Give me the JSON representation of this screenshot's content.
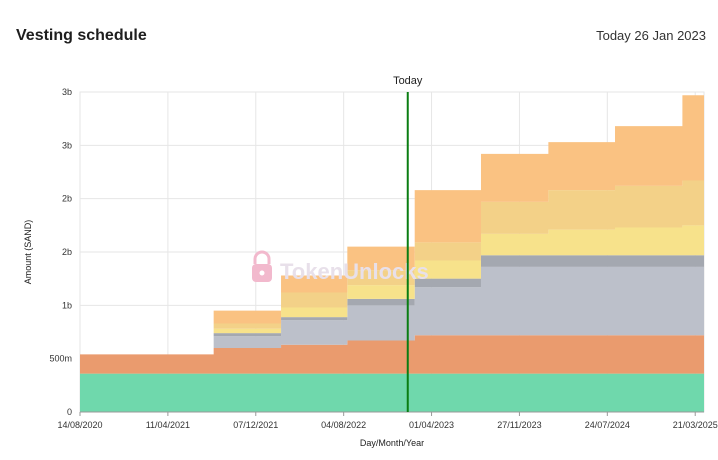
{
  "header": {
    "title": "Vesting schedule",
    "today_prefix": "Today",
    "today_date": "26 Jan 2023"
  },
  "watermark": {
    "text": "TokenUnlocks",
    "icon": "lock-icon"
  },
  "chart_data": {
    "type": "area",
    "title": "Vesting schedule",
    "xlabel": "Day/Month/Year",
    "ylabel": "Amount (SAND)",
    "x_ticks": [
      "14/08/2020",
      "11/04/2021",
      "07/12/2021",
      "04/08/2022",
      "01/04/2023",
      "27/11/2023",
      "24/07/2024",
      "21/03/2025"
    ],
    "y_ticks": [
      {
        "value": 0,
        "label": "0"
      },
      {
        "value": 500,
        "label": "500m"
      },
      {
        "value": 1000,
        "label": "1b"
      },
      {
        "value": 1500,
        "label": "2b"
      },
      {
        "value": 2000,
        "label": "2b"
      },
      {
        "value": 2500,
        "label": "3b"
      },
      {
        "value": 3000,
        "label": "3b"
      }
    ],
    "ylim": [
      0,
      3000
    ],
    "xlim": [
      "14/08/2020",
      "14/04/2025"
    ],
    "grid": true,
    "today": {
      "date": "26/01/2023",
      "label": "Today"
    },
    "x": [
      "14/08/2020",
      "20/05/2021",
      "14/08/2021",
      "14/11/2021",
      "14/02/2022",
      "14/05/2022",
      "14/08/2022",
      "14/11/2022",
      "14/02/2023",
      "14/05/2023",
      "14/08/2023",
      "14/11/2023",
      "14/02/2024",
      "14/05/2024",
      "14/08/2024",
      "14/11/2024",
      "14/02/2025"
    ],
    "series": [
      {
        "color": "#6fd8ac",
        "values": [
          360,
          360,
          360,
          360,
          360,
          360,
          360,
          360,
          360,
          360,
          360,
          360,
          360,
          360,
          360,
          360,
          360
        ]
      },
      {
        "color": "#ea9b6e",
        "values": [
          180,
          180,
          240,
          240,
          270,
          270,
          310,
          310,
          360,
          360,
          360,
          360,
          360,
          360,
          360,
          360,
          360
        ]
      },
      {
        "color": "#bcc0ca",
        "values": [
          0,
          0,
          110,
          110,
          230,
          230,
          330,
          330,
          450,
          450,
          640,
          640,
          640,
          640,
          640,
          640,
          640
        ]
      },
      {
        "color": "#a4a8b0",
        "values": [
          0,
          0,
          30,
          30,
          30,
          30,
          60,
          60,
          80,
          80,
          110,
          110,
          110,
          110,
          110,
          110,
          110
        ]
      },
      {
        "color": "#f7e28b",
        "values": [
          0,
          0,
          40,
          40,
          90,
          90,
          130,
          130,
          170,
          170,
          200,
          200,
          240,
          240,
          260,
          260,
          280
        ]
      },
      {
        "color": "#f3d188",
        "values": [
          0,
          0,
          50,
          50,
          140,
          140,
          140,
          140,
          170,
          170,
          300,
          300,
          370,
          370,
          390,
          390,
          420
        ]
      },
      {
        "color": "#fac282",
        "values": [
          0,
          0,
          120,
          120,
          160,
          160,
          220,
          220,
          490,
          490,
          450,
          450,
          450,
          450,
          560,
          560,
          800
        ]
      }
    ]
  }
}
